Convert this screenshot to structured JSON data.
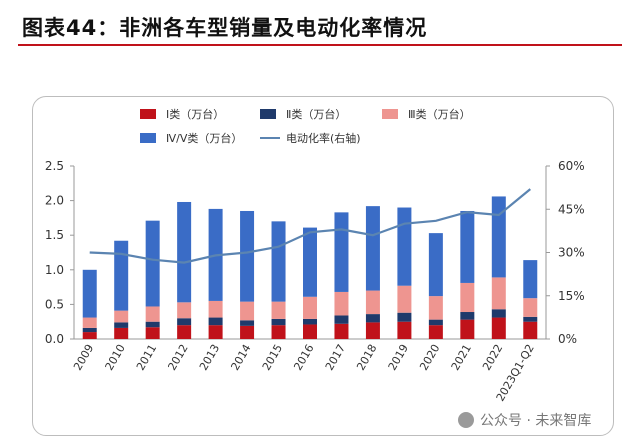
{
  "title": "图表44：非洲各车型销量及电动化率情况",
  "watermark": "公众号 · 未来智库",
  "chart_data": {
    "type": "bar",
    "stacked": true,
    "categories": [
      "2009",
      "2010",
      "2011",
      "2012",
      "2013",
      "2014",
      "2015",
      "2016",
      "2017",
      "2018",
      "2019",
      "2020",
      "2021",
      "2022",
      "2023Q1-Q2"
    ],
    "series": [
      {
        "name": "Ⅰ类（万台）",
        "color": "#c0121a",
        "values": [
          0.1,
          0.16,
          0.17,
          0.2,
          0.2,
          0.19,
          0.2,
          0.21,
          0.22,
          0.24,
          0.25,
          0.2,
          0.28,
          0.31,
          0.25
        ]
      },
      {
        "name": "Ⅱ类（万台）",
        "color": "#1f3a6b",
        "values": [
          0.06,
          0.08,
          0.08,
          0.1,
          0.11,
          0.08,
          0.09,
          0.08,
          0.12,
          0.12,
          0.13,
          0.08,
          0.11,
          0.12,
          0.07
        ]
      },
      {
        "name": "Ⅲ类（万台）",
        "color": "#ee9590",
        "values": [
          0.15,
          0.17,
          0.22,
          0.23,
          0.24,
          0.27,
          0.25,
          0.32,
          0.34,
          0.34,
          0.39,
          0.34,
          0.42,
          0.46,
          0.27
        ]
      },
      {
        "name": "Ⅳ/Ⅴ类（万台）",
        "color": "#3a6cc6",
        "values": [
          0.69,
          1.01,
          1.24,
          1.45,
          1.33,
          1.31,
          1.16,
          1.0,
          1.15,
          1.22,
          1.13,
          0.91,
          1.04,
          1.17,
          0.55
        ]
      }
    ],
    "line": {
      "name": "电动化率(右轴)",
      "color": "#5b84b1",
      "values": [
        30,
        29.5,
        27.5,
        26.5,
        29,
        30,
        32,
        37,
        38,
        36,
        40,
        41,
        44,
        43,
        52
      ]
    },
    "yleft": {
      "min": 0,
      "max": 2.5,
      "ticks": [
        "0.0",
        "0.5",
        "1.0",
        "1.5",
        "2.0",
        "2.5"
      ]
    },
    "yright": {
      "min": 0,
      "max": 60,
      "ticks": [
        "0%",
        "15%",
        "30%",
        "45%",
        "60%"
      ]
    },
    "legend_position": "top",
    "grid": false
  }
}
